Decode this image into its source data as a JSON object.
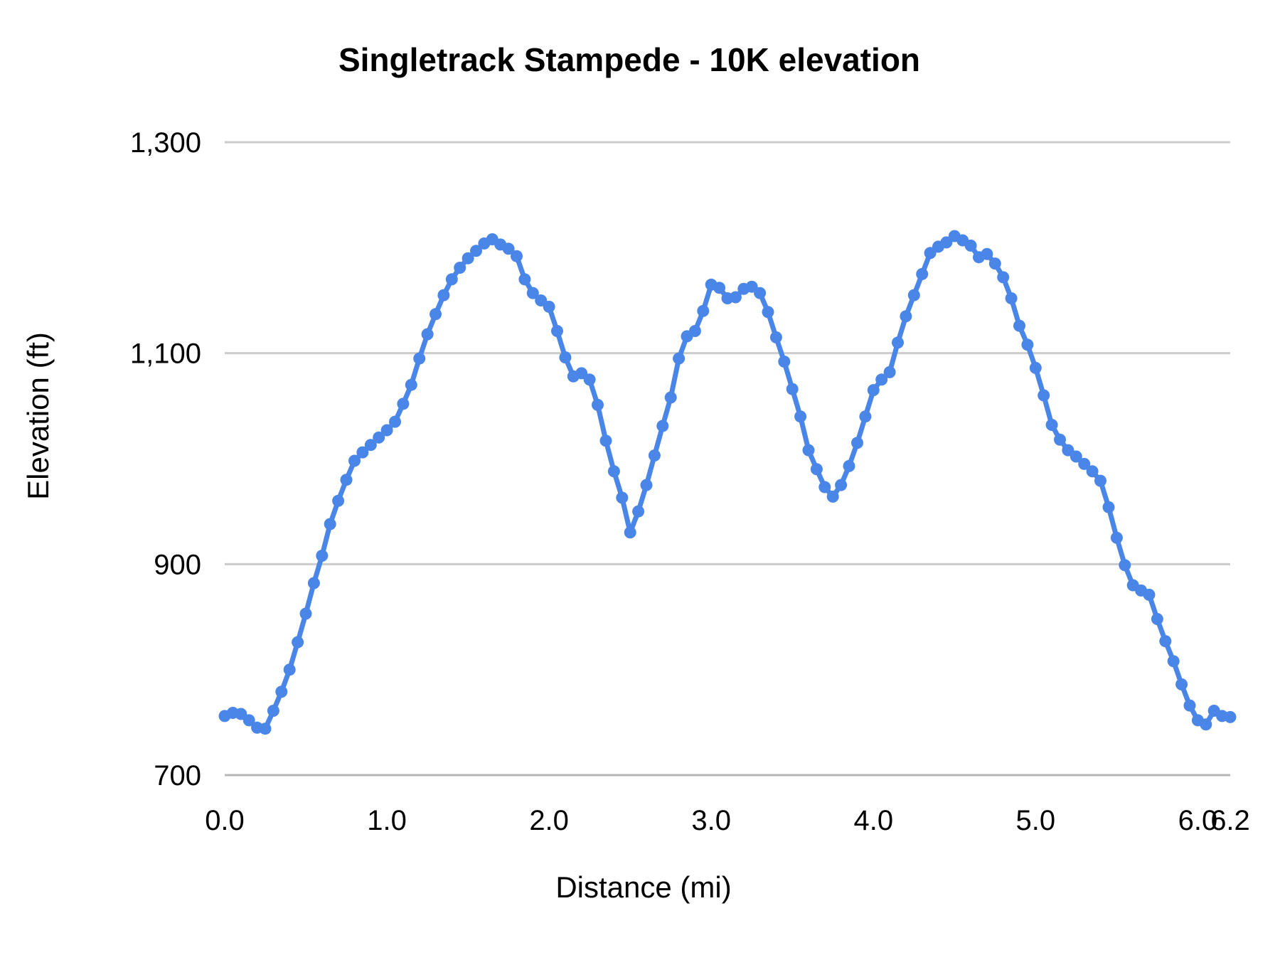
{
  "colors": {
    "series": "#4a86e8",
    "gridline": "#cccccc",
    "baseline": "#b7b7b7",
    "text": "#000000",
    "background": "#ffffff"
  },
  "chart_data": {
    "type": "line",
    "title": "Singletrack Stampede - 10K elevation",
    "xlabel": "Distance (mi)",
    "ylabel": "Elevation (ft)",
    "xlim": [
      0,
      6.2
    ],
    "ylim": [
      700,
      1300
    ],
    "grid": "horizontal-only",
    "legend": "none",
    "marker": "filled-circle",
    "x_ticks": [
      {
        "value": 0,
        "label": "0.0"
      },
      {
        "value": 1,
        "label": "1.0"
      },
      {
        "value": 2,
        "label": "2.0"
      },
      {
        "value": 3,
        "label": "3.0"
      },
      {
        "value": 4,
        "label": "4.0"
      },
      {
        "value": 5,
        "label": "5.0"
      },
      {
        "value": 6,
        "label": "6.0"
      },
      {
        "value": 6.2,
        "label": "6.2"
      }
    ],
    "y_ticks": [
      {
        "value": 700,
        "label": "700"
      },
      {
        "value": 900,
        "label": "900"
      },
      {
        "value": 1100,
        "label": "1,100"
      },
      {
        "value": 1300,
        "label": "1,300"
      }
    ],
    "series": [
      {
        "name": "elevation",
        "x": [
          0.0,
          0.05,
          0.1,
          0.15,
          0.2,
          0.25,
          0.3,
          0.35,
          0.4,
          0.45,
          0.5,
          0.55,
          0.6,
          0.65,
          0.7,
          0.75,
          0.8,
          0.85,
          0.9,
          0.95,
          1.0,
          1.05,
          1.1,
          1.15,
          1.2,
          1.25,
          1.3,
          1.35,
          1.4,
          1.45,
          1.5,
          1.55,
          1.6,
          1.65,
          1.7,
          1.75,
          1.8,
          1.85,
          1.9,
          1.95,
          2.0,
          2.05,
          2.1,
          2.15,
          2.2,
          2.25,
          2.3,
          2.35,
          2.4,
          2.45,
          2.5,
          2.55,
          2.6,
          2.65,
          2.7,
          2.75,
          2.8,
          2.85,
          2.9,
          2.95,
          3.0,
          3.05,
          3.1,
          3.15,
          3.2,
          3.25,
          3.3,
          3.35,
          3.4,
          3.45,
          3.5,
          3.55,
          3.6,
          3.65,
          3.7,
          3.75,
          3.8,
          3.85,
          3.9,
          3.95,
          4.0,
          4.05,
          4.1,
          4.15,
          4.2,
          4.25,
          4.3,
          4.35,
          4.4,
          4.45,
          4.5,
          4.55,
          4.6,
          4.65,
          4.7,
          4.75,
          4.8,
          4.85,
          4.9,
          4.95,
          5.0,
          5.05,
          5.1,
          5.15,
          5.2,
          5.25,
          5.3,
          5.35,
          5.4,
          5.45,
          5.5,
          5.55,
          5.6,
          5.65,
          5.7,
          5.75,
          5.8,
          5.85,
          5.9,
          5.95,
          6.0,
          6.05,
          6.1,
          6.15,
          6.2
        ],
        "y": [
          756,
          759,
          758,
          752,
          745,
          744,
          761,
          779,
          800,
          826,
          853,
          882,
          908,
          938,
          960,
          980,
          998,
          1006,
          1013,
          1020,
          1027,
          1035,
          1052,
          1070,
          1095,
          1118,
          1137,
          1155,
          1170,
          1181,
          1190,
          1197,
          1204,
          1208,
          1203,
          1199,
          1192,
          1170,
          1157,
          1150,
          1144,
          1121,
          1096,
          1078,
          1081,
          1075,
          1051,
          1017,
          988,
          963,
          930,
          950,
          975,
          1003,
          1031,
          1058,
          1095,
          1116,
          1121,
          1140,
          1165,
          1162,
          1152,
          1153,
          1161,
          1163,
          1157,
          1139,
          1115,
          1092,
          1066,
          1040,
          1008,
          990,
          973,
          964,
          975,
          993,
          1015,
          1040,
          1065,
          1075,
          1082,
          1110,
          1135,
          1155,
          1175,
          1195,
          1201,
          1205,
          1211,
          1207,
          1202,
          1191,
          1194,
          1185,
          1172,
          1152,
          1126,
          1108,
          1086,
          1060,
          1032,
          1018,
          1008,
          1002,
          995,
          988,
          979,
          954,
          925,
          899,
          880,
          875,
          871,
          848,
          827,
          808,
          786,
          766,
          752,
          748,
          761,
          756,
          755
        ]
      }
    ]
  }
}
